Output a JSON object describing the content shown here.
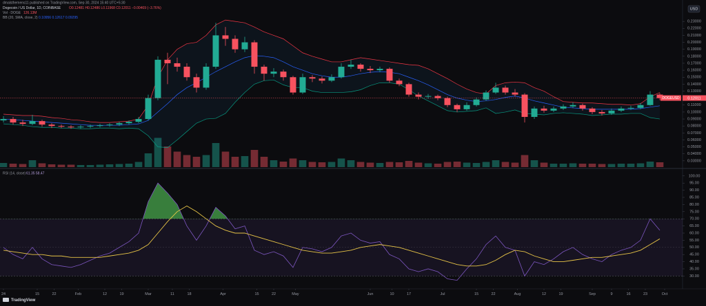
{
  "header": {
    "author": "dmalsthemens11 published on TradingView.com, Sep 30, 2024 15:40 UTC+5:30",
    "logo": "TradingView"
  },
  "chart_data": [
    {
      "type": "candlestick",
      "title": "Dogecoin / US Dollar, 1D, COINBASE",
      "ohlc_text": "O0.12481 H0.12486 L0.11968 C0.12011 −0.00469 (−3.76%)",
      "currency": "USD",
      "symbol": "DOGEUSD",
      "up_color": "#22ab94",
      "down_color": "#f7525f",
      "open": [
        0.088,
        0.09,
        0.085,
        0.083,
        0.087,
        0.082,
        0.08,
        0.079,
        0.078,
        0.079,
        0.08,
        0.081,
        0.082,
        0.084,
        0.086,
        0.09,
        0.12,
        0.175,
        0.17,
        0.165,
        0.15,
        0.135,
        0.165,
        0.21,
        0.205,
        0.19,
        0.2,
        0.165,
        0.155,
        0.158,
        0.15,
        0.128,
        0.15,
        0.148,
        0.145,
        0.15,
        0.165,
        0.168,
        0.162,
        0.16,
        0.162,
        0.145,
        0.14,
        0.125,
        0.122,
        0.123,
        0.12,
        0.11,
        0.104,
        0.11,
        0.118,
        0.128,
        0.135,
        0.128,
        0.125,
        0.093,
        0.105,
        0.102,
        0.105,
        0.108,
        0.11,
        0.105,
        0.1,
        0.098,
        0.102,
        0.105,
        0.106,
        0.11,
        0.125
      ],
      "high": [
        0.094,
        0.093,
        0.089,
        0.096,
        0.089,
        0.084,
        0.082,
        0.081,
        0.081,
        0.082,
        0.083,
        0.084,
        0.086,
        0.088,
        0.093,
        0.125,
        0.18,
        0.185,
        0.178,
        0.17,
        0.155,
        0.17,
        0.228,
        0.222,
        0.21,
        0.208,
        0.203,
        0.168,
        0.163,
        0.161,
        0.152,
        0.155,
        0.153,
        0.151,
        0.154,
        0.17,
        0.175,
        0.17,
        0.166,
        0.165,
        0.164,
        0.148,
        0.142,
        0.128,
        0.126,
        0.125,
        0.122,
        0.112,
        0.114,
        0.121,
        0.131,
        0.142,
        0.138,
        0.133,
        0.127,
        0.108,
        0.109,
        0.108,
        0.111,
        0.114,
        0.112,
        0.107,
        0.103,
        0.105,
        0.108,
        0.109,
        0.113,
        0.13,
        0.127
      ],
      "low": [
        0.085,
        0.082,
        0.08,
        0.081,
        0.079,
        0.077,
        0.077,
        0.076,
        0.076,
        0.077,
        0.078,
        0.079,
        0.08,
        0.082,
        0.084,
        0.088,
        0.117,
        0.14,
        0.158,
        0.145,
        0.128,
        0.132,
        0.162,
        0.195,
        0.185,
        0.186,
        0.155,
        0.145,
        0.15,
        0.145,
        0.125,
        0.126,
        0.143,
        0.141,
        0.143,
        0.148,
        0.162,
        0.158,
        0.156,
        0.157,
        0.142,
        0.137,
        0.122,
        0.118,
        0.119,
        0.117,
        0.107,
        0.1,
        0.102,
        0.108,
        0.116,
        0.126,
        0.125,
        0.122,
        0.085,
        0.09,
        0.099,
        0.1,
        0.103,
        0.106,
        0.102,
        0.097,
        0.095,
        0.096,
        0.1,
        0.103,
        0.104,
        0.109,
        0.117
      ],
      "close": [
        0.09,
        0.085,
        0.083,
        0.087,
        0.082,
        0.08,
        0.079,
        0.078,
        0.079,
        0.08,
        0.081,
        0.082,
        0.084,
        0.086,
        0.09,
        0.12,
        0.175,
        0.17,
        0.165,
        0.15,
        0.135,
        0.165,
        0.21,
        0.205,
        0.19,
        0.2,
        0.165,
        0.155,
        0.158,
        0.15,
        0.128,
        0.15,
        0.148,
        0.145,
        0.15,
        0.165,
        0.168,
        0.162,
        0.16,
        0.162,
        0.145,
        0.14,
        0.125,
        0.122,
        0.123,
        0.12,
        0.11,
        0.104,
        0.11,
        0.118,
        0.128,
        0.135,
        0.128,
        0.125,
        0.093,
        0.105,
        0.102,
        0.105,
        0.108,
        0.11,
        0.105,
        0.1,
        0.098,
        0.102,
        0.105,
        0.106,
        0.11,
        0.125,
        0.12
      ],
      "volume": {
        "name": "Vol · DOGE",
        "value_text": "126.13M",
        "ylim": [
          0,
          10
        ],
        "values": [
          1.2,
          1.0,
          0.9,
          2.0,
          1.1,
          0.8,
          0.7,
          0.7,
          0.6,
          0.6,
          0.7,
          0.8,
          0.9,
          1.0,
          1.5,
          4.0,
          8.5,
          6.0,
          4.5,
          3.5,
          3.0,
          3.5,
          7.0,
          4.5,
          3.0,
          3.2,
          5.0,
          3.0,
          2.0,
          1.6,
          2.5,
          2.0,
          1.5,
          1.4,
          1.5,
          2.5,
          2.0,
          1.5,
          1.3,
          1.2,
          1.5,
          1.4,
          1.8,
          1.3,
          1.1,
          1.0,
          1.5,
          1.6,
          1.3,
          1.2,
          1.5,
          2.0,
          1.5,
          1.3,
          3.5,
          2.0,
          1.3,
          1.0,
          1.0,
          1.1,
          1.0,
          1.0,
          0.9,
          0.9,
          1.0,
          1.0,
          1.1,
          1.6,
          1.4
        ]
      },
      "bollinger": {
        "name": "BB (20, SMA, close, 2)",
        "value_text": "0.10956 0.12617 0.09295",
        "fill": "#2196f3",
        "lines": [
          {
            "color": "#2962ff",
            "values": [
              0.09,
              0.089,
              0.088,
              0.087,
              0.086,
              0.085,
              0.084,
              0.083,
              0.082,
              0.081,
              0.081,
              0.081,
              0.081,
              0.082,
              0.083,
              0.088,
              0.1,
              0.112,
              0.125,
              0.135,
              0.142,
              0.15,
              0.158,
              0.165,
              0.172,
              0.178,
              0.181,
              0.18,
              0.178,
              0.172,
              0.165,
              0.16,
              0.155,
              0.152,
              0.15,
              0.15,
              0.152,
              0.155,
              0.157,
              0.158,
              0.157,
              0.155,
              0.15,
              0.145,
              0.139,
              0.132,
              0.125,
              0.12,
              0.117,
              0.115,
              0.116,
              0.118,
              0.121,
              0.123,
              0.12,
              0.116,
              0.113,
              0.11,
              0.107,
              0.106,
              0.105,
              0.104,
              0.104,
              0.104,
              0.104,
              0.104,
              0.105,
              0.107,
              0.109
            ]
          },
          {
            "color": "#f23645",
            "values": [
              0.097,
              0.096,
              0.095,
              0.095,
              0.094,
              0.092,
              0.091,
              0.089,
              0.088,
              0.086,
              0.085,
              0.085,
              0.086,
              0.087,
              0.09,
              0.11,
              0.15,
              0.175,
              0.19,
              0.198,
              0.2,
              0.21,
              0.225,
              0.232,
              0.23,
              0.228,
              0.222,
              0.215,
              0.21,
              0.205,
              0.195,
              0.185,
              0.18,
              0.176,
              0.172,
              0.172,
              0.175,
              0.178,
              0.176,
              0.174,
              0.172,
              0.17,
              0.168,
              0.167,
              0.162,
              0.155,
              0.148,
              0.14,
              0.133,
              0.128,
              0.126,
              0.138,
              0.142,
              0.143,
              0.142,
              0.135,
              0.13,
              0.122,
              0.115,
              0.114,
              0.113,
              0.113,
              0.112,
              0.111,
              0.111,
              0.11,
              0.112,
              0.122,
              0.128
            ]
          },
          {
            "color": "#089981",
            "values": [
              0.083,
              0.082,
              0.081,
              0.079,
              0.078,
              0.078,
              0.077,
              0.077,
              0.076,
              0.076,
              0.077,
              0.077,
              0.076,
              0.077,
              0.076,
              0.066,
              0.05,
              0.049,
              0.06,
              0.072,
              0.084,
              0.09,
              0.091,
              0.098,
              0.114,
              0.128,
              0.14,
              0.145,
              0.146,
              0.139,
              0.135,
              0.135,
              0.13,
              0.128,
              0.128,
              0.128,
              0.129,
              0.132,
              0.138,
              0.142,
              0.142,
              0.14,
              0.132,
              0.123,
              0.116,
              0.109,
              0.102,
              0.1,
              0.101,
              0.102,
              0.106,
              0.098,
              0.1,
              0.103,
              0.098,
              0.097,
              0.096,
              0.098,
              0.099,
              0.098,
              0.097,
              0.095,
              0.096,
              0.097,
              0.097,
              0.098,
              0.098,
              0.092,
              0.09
            ]
          }
        ]
      },
      "last_price": 0.12011,
      "ylim": [
        0.021,
        0.241
      ],
      "yticks": [
        {
          "value": 0.23,
          "label": "0.23000"
        },
        {
          "value": 0.22,
          "label": "0.22000"
        },
        {
          "value": 0.21,
          "label": "0.21000"
        },
        {
          "value": 0.2,
          "label": "0.20000"
        },
        {
          "value": 0.19,
          "label": "0.19000"
        },
        {
          "value": 0.18,
          "label": "0.18000"
        },
        {
          "value": 0.17,
          "label": "0.17000"
        },
        {
          "value": 0.16,
          "label": "0.16000"
        },
        {
          "value": 0.15,
          "label": "0.15000"
        },
        {
          "value": 0.14,
          "label": "0.14000"
        },
        {
          "value": 0.13,
          "label": "0.13000"
        },
        {
          "value": 0.11,
          "label": "0.11000"
        },
        {
          "value": 0.1,
          "label": "0.10000"
        },
        {
          "value": 0.09,
          "label": "0.09000"
        },
        {
          "value": 0.08,
          "label": "0.08000"
        },
        {
          "value": 0.07,
          "label": "0.07000"
        },
        {
          "value": 0.06,
          "label": "0.06000"
        },
        {
          "value": 0.05,
          "label": "0.05000"
        },
        {
          "value": 0.04,
          "label": "0.04000"
        },
        {
          "value": 0.03,
          "label": "0.03000"
        }
      ],
      "grid": false
    },
    {
      "type": "line",
      "title": "RSI (14, close)",
      "value_text": "61.35 58.47",
      "series": [
        {
          "color": "#7e57c2",
          "values": [
            50,
            45,
            42,
            50,
            42,
            38,
            37,
            36,
            38,
            41,
            44,
            46,
            50,
            54,
            60,
            82,
            95,
            88,
            80,
            65,
            55,
            65,
            78,
            72,
            63,
            65,
            48,
            45,
            47,
            44,
            36,
            50,
            49,
            47,
            50,
            58,
            60,
            55,
            53,
            54,
            45,
            42,
            35,
            33,
            35,
            33,
            28,
            27,
            35,
            42,
            52,
            58,
            50,
            48,
            30,
            40,
            38,
            42,
            47,
            50,
            45,
            42,
            40,
            45,
            48,
            50,
            55,
            70,
            62
          ]
        },
        {
          "color": "#e8c547",
          "values": [
            48,
            47,
            46,
            45,
            45,
            44,
            44,
            43,
            43,
            43,
            43,
            44,
            45,
            46,
            48,
            52,
            60,
            68,
            75,
            79,
            75,
            70,
            65,
            62,
            60,
            60,
            58,
            56,
            54,
            52,
            50,
            48,
            47,
            46,
            46,
            47,
            48,
            50,
            51,
            52,
            51,
            50,
            48,
            46,
            44,
            42,
            40,
            38,
            37,
            37,
            38,
            41,
            45,
            48,
            47,
            44,
            42,
            40,
            40,
            41,
            42,
            43,
            43,
            44,
            45,
            46,
            48,
            52,
            56
          ]
        }
      ],
      "levels": [
        70,
        50,
        30
      ],
      "band_color": "#7e57c2",
      "overbought_color": "#4caf50",
      "ylim": [
        22,
        104
      ],
      "yticks": [
        {
          "value": 100,
          "label": "100.00"
        },
        {
          "value": 95,
          "label": "95.00"
        },
        {
          "value": 90,
          "label": "90.00"
        },
        {
          "value": 85,
          "label": "85.00"
        },
        {
          "value": 80,
          "label": "80.00"
        },
        {
          "value": 75,
          "label": "75.00"
        },
        {
          "value": 70,
          "label": "70.00"
        },
        {
          "value": 65,
          "label": "65.00"
        },
        {
          "value": 60,
          "label": "60.00"
        },
        {
          "value": 55,
          "label": "55.00"
        },
        {
          "value": 50,
          "label": "50.00"
        },
        {
          "value": 45,
          "label": "45.00"
        },
        {
          "value": 40,
          "label": "40.00"
        },
        {
          "value": 35,
          "label": "35.00"
        },
        {
          "value": 30,
          "label": "30.00"
        }
      ],
      "xticks": [
        {
          "value": 0,
          "label": "24"
        },
        {
          "value": 3.5,
          "label": "15"
        },
        {
          "value": 5.25,
          "label": "22"
        },
        {
          "value": 7.75,
          "label": "Feb"
        },
        {
          "value": 10.5,
          "label": "12"
        },
        {
          "value": 12.25,
          "label": "19"
        },
        {
          "value": 15,
          "label": "Mar"
        },
        {
          "value": 17.5,
          "label": "11"
        },
        {
          "value": 19.25,
          "label": "18"
        },
        {
          "value": 22.75,
          "label": "Apr"
        },
        {
          "value": 26.25,
          "label": "15"
        },
        {
          "value": 28,
          "label": "22"
        },
        {
          "value": 30.25,
          "label": "May"
        },
        {
          "value": 38,
          "label": "Jun"
        },
        {
          "value": 40.25,
          "label": "10"
        },
        {
          "value": 42,
          "label": "17"
        },
        {
          "value": 45.5,
          "label": "Jul"
        },
        {
          "value": 49,
          "label": "15"
        },
        {
          "value": 50.75,
          "label": "22"
        },
        {
          "value": 53.25,
          "label": "Aug"
        },
        {
          "value": 56,
          "label": "12"
        },
        {
          "value": 57.75,
          "label": "19"
        },
        {
          "value": 61,
          "label": "Sep"
        },
        {
          "value": 63,
          "label": "9"
        },
        {
          "value": 64.75,
          "label": "16"
        },
        {
          "value": 66.5,
          "label": "23"
        },
        {
          "value": 68.5,
          "label": "Oct"
        }
      ],
      "grid": false
    }
  ]
}
